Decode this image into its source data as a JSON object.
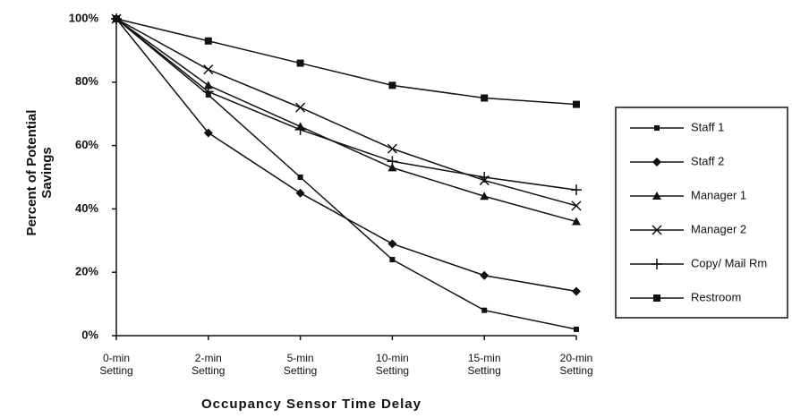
{
  "chart_data": {
    "type": "line",
    "x_label": "Occupancy Sensor Time Delay",
    "y_label": "Percent of Potential Savings",
    "categories": [
      "0-min Setting",
      "2-min Setting",
      "5-min Setting",
      "10-min Setting",
      "15-min Setting",
      "20-min Setting"
    ],
    "series": [
      {
        "name": "Staff 1",
        "color": "#111111",
        "marker": "small-square",
        "values": [
          100,
          76,
          50,
          24,
          8,
          2
        ]
      },
      {
        "name": "Staff 2",
        "color": "#111111",
        "marker": "diamond",
        "values": [
          100,
          64,
          45,
          29,
          19,
          14
        ]
      },
      {
        "name": "Manager 1",
        "color": "#111111",
        "marker": "triangle",
        "values": [
          100,
          79,
          66,
          53,
          44,
          36
        ]
      },
      {
        "name": "Manager 2",
        "color": "#111111",
        "marker": "x",
        "values": [
          100,
          84,
          72,
          59,
          49,
          41
        ]
      },
      {
        "name": "Copy/ Mail Rm",
        "color": "#111111",
        "marker": "plus",
        "values": [
          100,
          77,
          65,
          55,
          50,
          46
        ]
      },
      {
        "name": "Restroom",
        "color": "#111111",
        "marker": "square",
        "values": [
          100,
          93,
          86,
          79,
          75,
          73
        ]
      }
    ],
    "ylim": [
      0,
      100
    ],
    "yticks": [
      {
        "value": 0,
        "label": "0%"
      },
      {
        "value": 20,
        "label": "20%"
      },
      {
        "value": 40,
        "label": "40%"
      },
      {
        "value": 60,
        "label": "60%"
      },
      {
        "value": 80,
        "label": "80%"
      },
      {
        "value": 100,
        "label": "100%"
      }
    ],
    "grid": false,
    "legend": "right"
  }
}
